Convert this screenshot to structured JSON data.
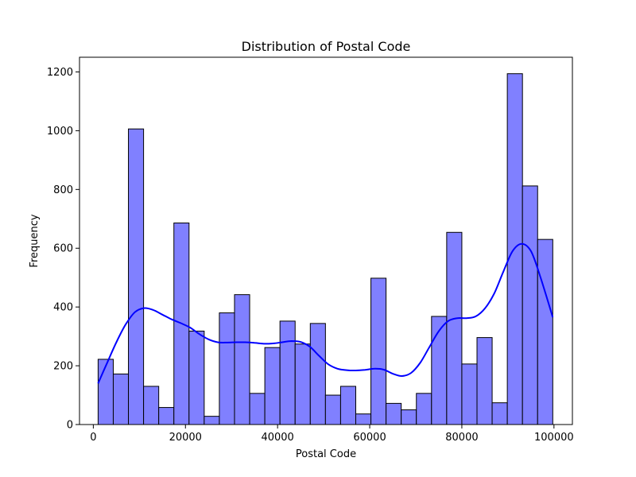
{
  "chart_data": {
    "type": "bar",
    "title": "Distribution of Postal Code",
    "xlabel": "Postal Code",
    "ylabel": "Frequency",
    "xlim": [
      -3000,
      104000
    ],
    "ylim": [
      0,
      1250
    ],
    "x_ticks": [
      0,
      20000,
      40000,
      60000,
      80000,
      100000
    ],
    "y_ticks": [
      0,
      200,
      400,
      600,
      800,
      1000,
      1200
    ],
    "bar_color": "#8080ff",
    "bar_edge_color": "#000000",
    "kde_color": "#0000ff",
    "grid": false,
    "legend": "none",
    "bins": [
      {
        "x0": 1040,
        "x1": 4330,
        "count": 222
      },
      {
        "x0": 4330,
        "x1": 7620,
        "count": 172
      },
      {
        "x0": 7620,
        "x1": 10910,
        "count": 1006
      },
      {
        "x0": 10910,
        "x1": 14200,
        "count": 130
      },
      {
        "x0": 14200,
        "x1": 17490,
        "count": 58
      },
      {
        "x0": 17490,
        "x1": 20780,
        "count": 686
      },
      {
        "x0": 20780,
        "x1": 24070,
        "count": 318
      },
      {
        "x0": 24070,
        "x1": 27360,
        "count": 28
      },
      {
        "x0": 27360,
        "x1": 30650,
        "count": 380
      },
      {
        "x0": 30650,
        "x1": 33940,
        "count": 442
      },
      {
        "x0": 33940,
        "x1": 37230,
        "count": 106
      },
      {
        "x0": 37230,
        "x1": 40520,
        "count": 262
      },
      {
        "x0": 40520,
        "x1": 43810,
        "count": 352
      },
      {
        "x0": 43810,
        "x1": 47100,
        "count": 274
      },
      {
        "x0": 47100,
        "x1": 50390,
        "count": 344
      },
      {
        "x0": 50390,
        "x1": 53680,
        "count": 100
      },
      {
        "x0": 53680,
        "x1": 56970,
        "count": 130
      },
      {
        "x0": 56970,
        "x1": 60260,
        "count": 36
      },
      {
        "x0": 60260,
        "x1": 63550,
        "count": 498
      },
      {
        "x0": 63550,
        "x1": 66840,
        "count": 72
      },
      {
        "x0": 66840,
        "x1": 70130,
        "count": 50
      },
      {
        "x0": 70130,
        "x1": 73420,
        "count": 106
      },
      {
        "x0": 73420,
        "x1": 76710,
        "count": 368
      },
      {
        "x0": 76710,
        "x1": 80000,
        "count": 654
      },
      {
        "x0": 80000,
        "x1": 83290,
        "count": 206
      },
      {
        "x0": 83290,
        "x1": 86580,
        "count": 296
      },
      {
        "x0": 86580,
        "x1": 89870,
        "count": 74
      },
      {
        "x0": 89870,
        "x1": 93160,
        "count": 1194
      },
      {
        "x0": 93160,
        "x1": 96450,
        "count": 812
      },
      {
        "x0": 96450,
        "x1": 99740,
        "count": 630
      }
    ],
    "kde": {
      "x": [
        1040,
        3000,
        5000,
        7000,
        9000,
        11000,
        13000,
        15000,
        17000,
        19000,
        21000,
        23000,
        25000,
        27000,
        29000,
        31000,
        33000,
        35000,
        37000,
        39000,
        41000,
        43000,
        45000,
        47000,
        49000,
        51000,
        53000,
        55000,
        57000,
        59000,
        61000,
        63000,
        65000,
        67000,
        69000,
        71000,
        73000,
        75000,
        77000,
        79000,
        81000,
        83000,
        85000,
        87000,
        89000,
        91000,
        93000,
        95000,
        97000,
        99740
      ],
      "y": [
        140,
        210,
        280,
        340,
        382,
        396,
        390,
        374,
        358,
        345,
        330,
        308,
        290,
        280,
        279,
        280,
        280,
        278,
        275,
        276,
        280,
        284,
        281,
        265,
        234,
        205,
        190,
        185,
        184,
        186,
        190,
        187,
        173,
        165,
        176,
        211,
        265,
        318,
        352,
        362,
        362,
        368,
        395,
        445,
        520,
        590,
        615,
        590,
        505,
        365
      ]
    }
  }
}
